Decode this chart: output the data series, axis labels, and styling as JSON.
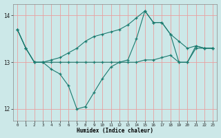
{
  "xlabel": "Humidex (Indice chaleur)",
  "background_color": "#cce8e8",
  "grid_color_h": "#e8a0a0",
  "grid_color_v": "#e8a0a0",
  "line_color": "#1a7a6e",
  "xlim": [
    -0.5,
    23.5
  ],
  "ylim": [
    11.75,
    14.25
  ],
  "yticks": [
    12,
    13,
    14
  ],
  "xticks": [
    0,
    1,
    2,
    3,
    4,
    5,
    6,
    7,
    8,
    9,
    10,
    11,
    12,
    13,
    14,
    15,
    16,
    17,
    18,
    19,
    20,
    21,
    22,
    23
  ],
  "curve_upper": [
    13.7,
    13.3,
    13.0,
    13.0,
    13.05,
    13.1,
    13.2,
    13.3,
    13.45,
    13.55,
    13.6,
    13.65,
    13.7,
    13.8,
    13.95,
    14.1,
    13.85,
    13.85,
    13.6,
    13.45,
    13.3,
    13.35,
    13.3,
    13.3
  ],
  "curve_main": [
    13.7,
    13.3,
    13.0,
    13.0,
    12.85,
    12.75,
    12.5,
    12.0,
    12.05,
    12.35,
    12.65,
    12.9,
    13.0,
    13.05,
    13.5,
    14.1,
    13.85,
    13.85,
    13.6,
    13.0,
    13.0,
    13.35,
    13.3,
    13.3
  ],
  "curve_lower": [
    13.7,
    13.3,
    13.0,
    13.0,
    13.0,
    13.0,
    13.0,
    13.0,
    13.0,
    13.0,
    13.0,
    13.0,
    13.0,
    13.0,
    13.0,
    13.05,
    13.05,
    13.1,
    13.15,
    13.0,
    13.0,
    13.3,
    13.3,
    13.3
  ]
}
